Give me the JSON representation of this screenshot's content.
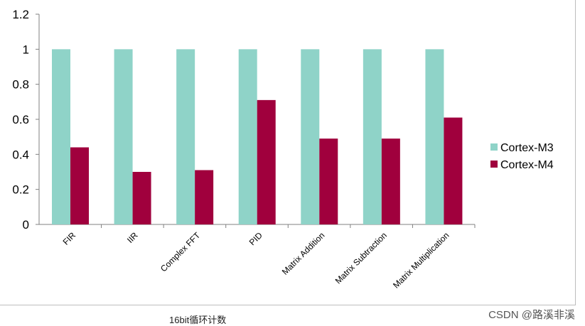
{
  "chart_data": {
    "type": "bar",
    "categories": [
      "FIR",
      "IIR",
      "Complex FFT",
      "PID",
      "Matrix Addition",
      "Matrix Subtraction",
      "Matrix Multiplication"
    ],
    "series": [
      {
        "name": "Cortex-M3",
        "values": [
          1,
          1,
          1,
          1,
          1,
          1,
          1
        ],
        "color": "#8fd3c8"
      },
      {
        "name": "Cortex-M4",
        "values": [
          0.44,
          0.3,
          0.31,
          0.71,
          0.49,
          0.49,
          0.61
        ],
        "color": "#a0003d"
      }
    ],
    "ylim": [
      0,
      1.2
    ],
    "yticks": [
      "0",
      "0.2",
      "0.4",
      "0.6",
      "0.8",
      "1",
      "1.2"
    ],
    "grid": false,
    "legend": "right"
  },
  "caption": "16bit循环计数",
  "watermark": "CSDN @路溪非溪"
}
